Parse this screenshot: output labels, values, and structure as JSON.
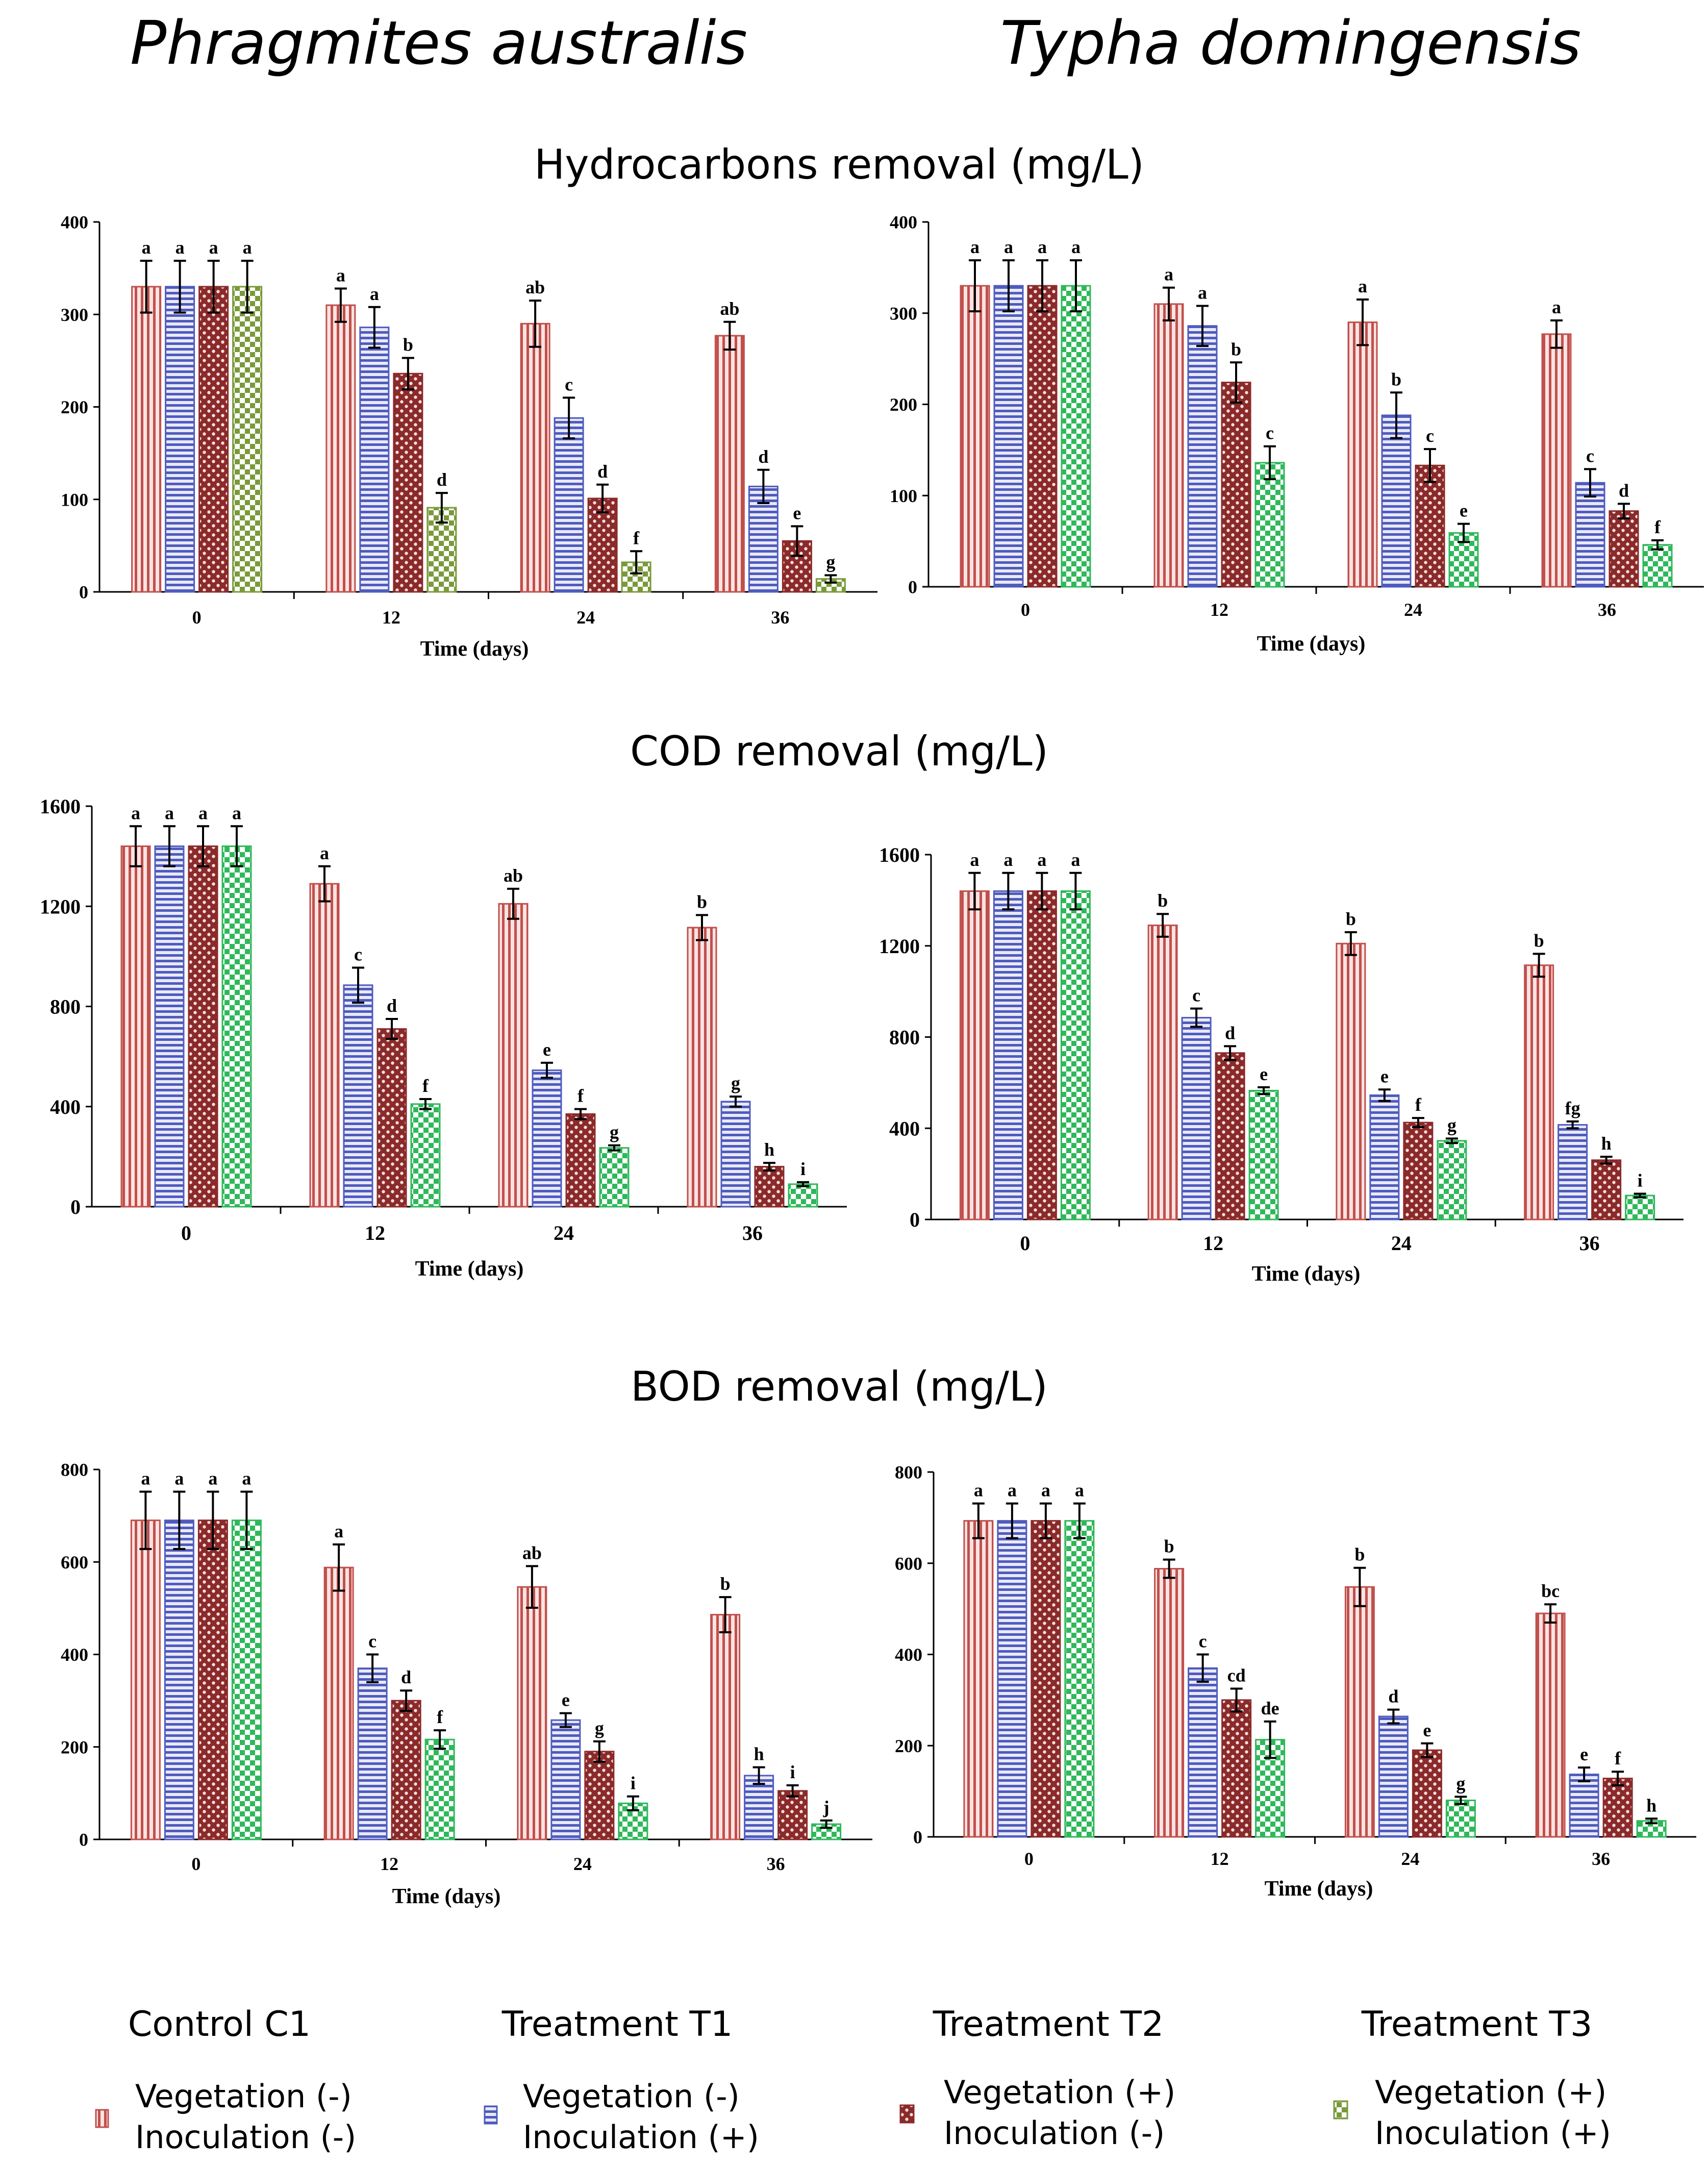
{
  "column_titles": [
    "Phragmites australis",
    "Typha domingensis"
  ],
  "row_titles": [
    "Hydrocarbons removal (mg/L)",
    "COD removal (mg/L)",
    "BOD removal (mg/L)"
  ],
  "colors": {
    "C1": "#c0504d",
    "T1": "#4f5bbd",
    "T2": "#8b2a2a",
    "T3_phrag_hc": "#7a9a3a",
    "T3": "#2fb85a"
  },
  "legend": [
    {
      "group": "Control C1",
      "line1": "Vegetation (-)",
      "line2": "Inoculation (-)",
      "icon": "c1-swatch-icon"
    },
    {
      "group": "Treatment T1",
      "line1": "Vegetation (-)",
      "line2": "Inoculation (+)",
      "icon": "t1-swatch-icon"
    },
    {
      "group": "Treatment T2",
      "line1": "Vegetation (+)",
      "line2": "Inoculation (-)",
      "icon": "t2-swatch-icon"
    },
    {
      "group": "Treatment T3",
      "line1": "Vegetation (+)",
      "line2": "Inoculation (+)",
      "icon": "t3-swatch-icon"
    }
  ],
  "chart_data": [
    {
      "id": "phrag-hc",
      "type": "bar",
      "title": "Hydrocarbons removal (mg/L)",
      "species": "Phragmites australis",
      "categories": [
        "0",
        "12",
        "24",
        "36"
      ],
      "xlabel": "Time (days)",
      "ylabel": "",
      "ylim": [
        0,
        400
      ],
      "yticks": [
        "0",
        "100",
        "200",
        "300",
        "400"
      ],
      "show_xlabel": true,
      "series": [
        {
          "name": "Control C1",
          "values": [
            330,
            310,
            290,
            277
          ],
          "errors": [
            28,
            18,
            25,
            15
          ],
          "letters": [
            "a",
            "a",
            "ab",
            "ab"
          ]
        },
        {
          "name": "Treatment T1",
          "values": [
            330,
            286,
            188,
            114
          ],
          "errors": [
            28,
            22,
            22,
            18
          ],
          "letters": [
            "a",
            "a",
            "c",
            "d"
          ]
        },
        {
          "name": "Treatment T2",
          "values": [
            330,
            236,
            101,
            55
          ],
          "errors": [
            28,
            17,
            15,
            16
          ],
          "letters": [
            "a",
            "b",
            "d",
            "e"
          ]
        },
        {
          "name": "Treatment T3",
          "values": [
            330,
            91,
            32,
            14
          ],
          "errors": [
            28,
            16,
            12,
            4
          ],
          "letters": [
            "a",
            "d",
            "f",
            "g"
          ]
        }
      ]
    },
    {
      "id": "typha-hc",
      "type": "bar",
      "title": "Hydrocarbons removal (mg/L)",
      "species": "Typha domingensis",
      "categories": [
        "0",
        "12",
        "24",
        "36"
      ],
      "xlabel": "Time (days)",
      "ylabel": "",
      "ylim": [
        0,
        400
      ],
      "yticks": [
        "0",
        "100",
        "200",
        "300",
        "400"
      ],
      "show_xlabel": true,
      "series": [
        {
          "name": "Control C1",
          "values": [
            330,
            310,
            290,
            277
          ],
          "errors": [
            28,
            18,
            25,
            15
          ],
          "letters": [
            "a",
            "a",
            "a",
            "a"
          ]
        },
        {
          "name": "Treatment T1",
          "values": [
            330,
            286,
            188,
            114
          ],
          "errors": [
            28,
            22,
            25,
            15
          ],
          "letters": [
            "a",
            "a",
            "b",
            "c"
          ]
        },
        {
          "name": "Treatment T2",
          "values": [
            330,
            224,
            133,
            83
          ],
          "errors": [
            28,
            22,
            18,
            8
          ],
          "letters": [
            "a",
            "b",
            "c",
            "d"
          ]
        },
        {
          "name": "Treatment T3",
          "values": [
            330,
            136,
            59,
            46
          ],
          "errors": [
            28,
            18,
            10,
            5
          ],
          "letters": [
            "a",
            "c",
            "e",
            "f"
          ]
        }
      ]
    },
    {
      "id": "phrag-cod",
      "type": "bar",
      "title": "COD removal (mg/L)",
      "species": "Phragmites australis",
      "categories": [
        "0",
        "12",
        "24",
        "36"
      ],
      "xlabel": "Time (days)",
      "ylabel": "",
      "ylim": [
        0,
        1600
      ],
      "yticks": [
        "0",
        "400",
        "800",
        "1200",
        "1600"
      ],
      "show_xlabel": true,
      "series": [
        {
          "name": "Control C1",
          "values": [
            1440,
            1290,
            1210,
            1115
          ],
          "errors": [
            80,
            70,
            60,
            50
          ],
          "letters": [
            "a",
            "a",
            "ab",
            "b"
          ]
        },
        {
          "name": "Treatment T1",
          "values": [
            1440,
            885,
            545,
            420
          ],
          "errors": [
            80,
            70,
            30,
            20
          ],
          "letters": [
            "a",
            "c",
            "e",
            "g"
          ]
        },
        {
          "name": "Treatment T2",
          "values": [
            1440,
            710,
            370,
            160
          ],
          "errors": [
            80,
            40,
            20,
            15
          ],
          "letters": [
            "a",
            "d",
            "f",
            "h"
          ]
        },
        {
          "name": "Treatment T3",
          "values": [
            1440,
            410,
            235,
            90
          ],
          "errors": [
            80,
            20,
            10,
            8
          ],
          "letters": [
            "a",
            "f",
            "g",
            "i"
          ]
        }
      ]
    },
    {
      "id": "typha-cod",
      "type": "bar",
      "title": "COD removal (mg/L)",
      "species": "Typha domingensis",
      "categories": [
        "0",
        "12",
        "24",
        "36"
      ],
      "xlabel": "Time (days)",
      "ylabel": "",
      "ylim": [
        0,
        1600
      ],
      "yticks": [
        "0",
        "400",
        "800",
        "1200",
        "1600"
      ],
      "show_xlabel": true,
      "series": [
        {
          "name": "Control C1",
          "values": [
            1440,
            1290,
            1210,
            1115
          ],
          "errors": [
            80,
            50,
            50,
            50
          ],
          "letters": [
            "a",
            "b",
            "b",
            "b"
          ]
        },
        {
          "name": "Treatment T1",
          "values": [
            1440,
            885,
            545,
            415
          ],
          "errors": [
            80,
            40,
            25,
            15
          ],
          "letters": [
            "a",
            "c",
            "e",
            "fg"
          ]
        },
        {
          "name": "Treatment T2",
          "values": [
            1440,
            730,
            425,
            260
          ],
          "errors": [
            80,
            30,
            20,
            15
          ],
          "letters": [
            "a",
            "d",
            "f",
            "h"
          ]
        },
        {
          "name": "Treatment T3",
          "values": [
            1440,
            565,
            345,
            105
          ],
          "errors": [
            80,
            15,
            10,
            8
          ],
          "letters": [
            "a",
            "e",
            "g",
            "i"
          ]
        }
      ]
    },
    {
      "id": "phrag-bod",
      "type": "bar",
      "title": "BOD removal (mg/L)",
      "species": "Phragmites australis",
      "categories": [
        "0",
        "12",
        "24",
        "36"
      ],
      "xlabel": "Time (days)",
      "ylabel": "",
      "ylim": [
        0,
        800
      ],
      "yticks": [
        "0",
        "200",
        "400",
        "600",
        "800"
      ],
      "show_xlabel": true,
      "series": [
        {
          "name": "Control C1",
          "values": [
            690,
            588,
            546,
            486
          ],
          "errors": [
            62,
            50,
            45,
            38
          ],
          "letters": [
            "a",
            "a",
            "ab",
            "b"
          ]
        },
        {
          "name": "Treatment T1",
          "values": [
            690,
            370,
            258,
            138
          ],
          "errors": [
            62,
            30,
            15,
            18
          ],
          "letters": [
            "a",
            "c",
            "e",
            "h"
          ]
        },
        {
          "name": "Treatment T2",
          "values": [
            690,
            300,
            190,
            105
          ],
          "errors": [
            62,
            22,
            22,
            12
          ],
          "letters": [
            "a",
            "d",
            "g",
            "i"
          ]
        },
        {
          "name": "Treatment T3",
          "values": [
            690,
            216,
            78,
            33
          ],
          "errors": [
            62,
            20,
            15,
            8
          ],
          "letters": [
            "a",
            "f",
            "i",
            "j"
          ]
        }
      ]
    },
    {
      "id": "typha-bod",
      "type": "bar",
      "title": "BOD removal (mg/L)",
      "species": "Typha domingensis",
      "categories": [
        "0",
        "12",
        "24",
        "36"
      ],
      "xlabel": "Time (days)",
      "ylabel": "",
      "ylim": [
        0,
        800
      ],
      "yticks": [
        "0",
        "200",
        "400",
        "600",
        "800"
      ],
      "show_xlabel": true,
      "series": [
        {
          "name": "Control C1",
          "values": [
            693,
            588,
            548,
            490
          ],
          "errors": [
            38,
            20,
            42,
            20
          ],
          "letters": [
            "a",
            "b",
            "b",
            "bc"
          ]
        },
        {
          "name": "Treatment T1",
          "values": [
            693,
            370,
            264,
            137
          ],
          "errors": [
            38,
            30,
            15,
            15
          ],
          "letters": [
            "a",
            "c",
            "d",
            "e"
          ]
        },
        {
          "name": "Treatment T2",
          "values": [
            693,
            300,
            190,
            128
          ],
          "errors": [
            38,
            25,
            15,
            15
          ],
          "letters": [
            "a",
            "cd",
            "e",
            "f"
          ]
        },
        {
          "name": "Treatment T3",
          "values": [
            693,
            213,
            80,
            35
          ],
          "errors": [
            38,
            40,
            8,
            5
          ],
          "letters": [
            "a",
            "de",
            "g",
            "h"
          ]
        }
      ]
    }
  ]
}
